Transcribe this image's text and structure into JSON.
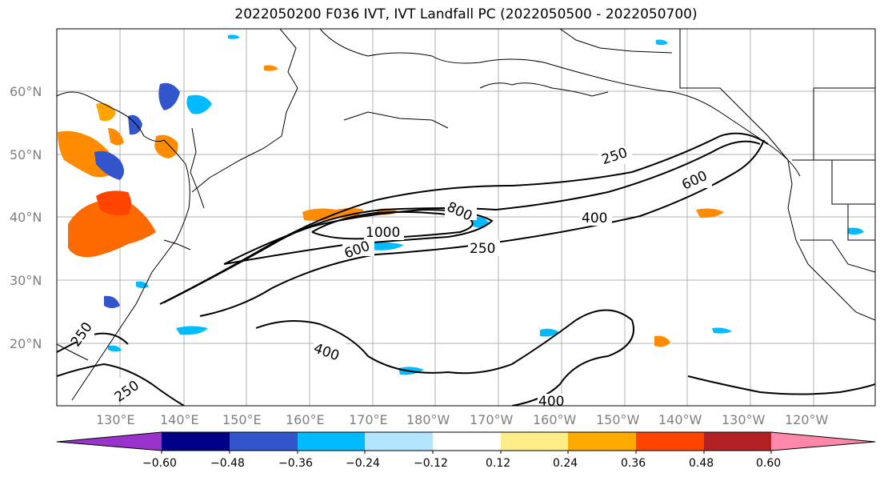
{
  "title": "2022050200 F036 IVT, IVT Landfall PC (2022050500 - 2022050700)",
  "lat_labels": [
    "60°N",
    "50°N",
    "40°N",
    "30°N",
    "20°N"
  ],
  "lon_labels": [
    "130°E",
    "140°E",
    "150°E",
    "160°E",
    "170°E",
    "180°W",
    "170°W",
    "160°W",
    "150°W",
    "140°W",
    "130°W",
    "120°W"
  ],
  "contour_labels": [
    "250",
    "600",
    "400",
    "800",
    "1000",
    "600",
    "250",
    "250",
    "250",
    "400",
    "400"
  ],
  "colorbar": {
    "colors": [
      "#9933cc",
      "#000088",
      "#3355cc",
      "#00bbff",
      "#b3e5ff",
      "#ffffff",
      "#ffee88",
      "#ffaa00",
      "#ff4400",
      "#b22222",
      "#ff88aa"
    ],
    "tick_labels": [
      "−0.60",
      "−0.48",
      "−0.36",
      "−0.24",
      "−0.12",
      "0.12",
      "0.24",
      "0.36",
      "0.48",
      "0.60"
    ]
  }
}
